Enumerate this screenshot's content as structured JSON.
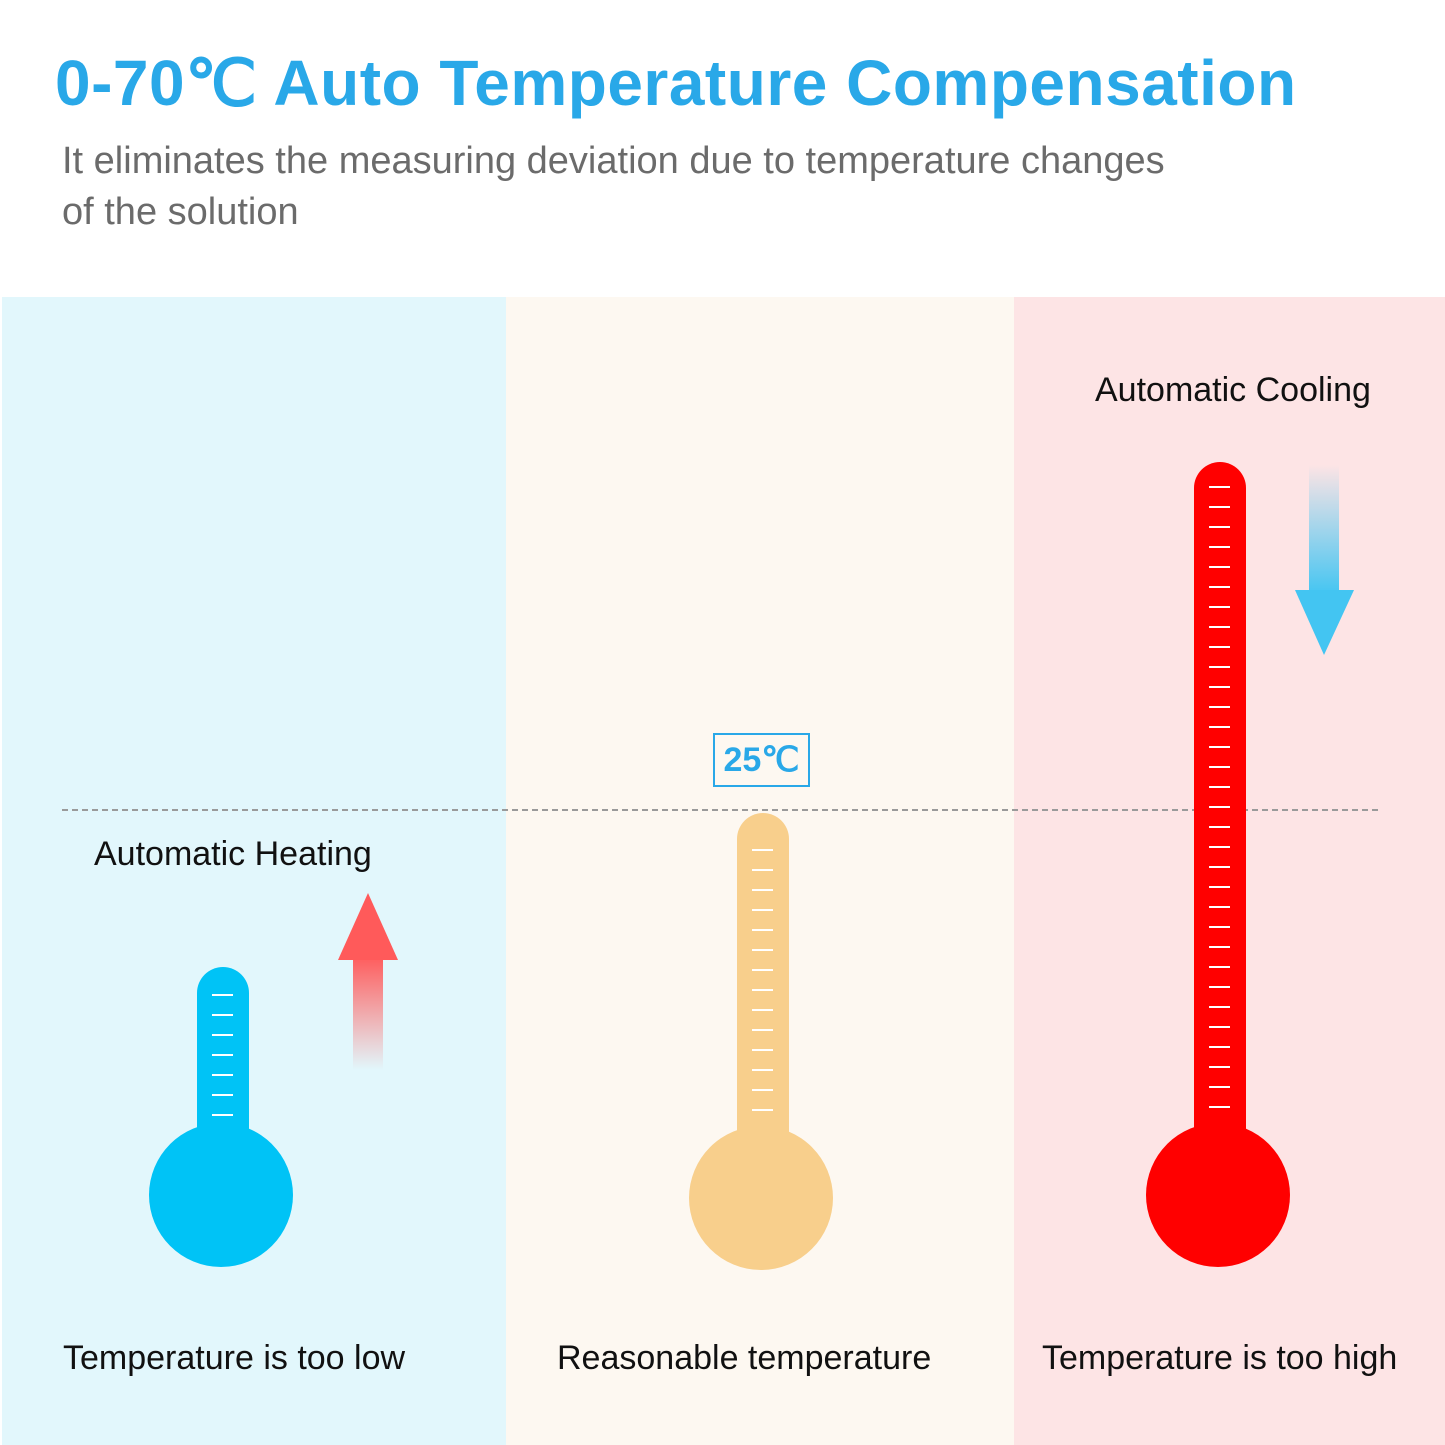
{
  "header": {
    "title": "0-70℃ Auto Temperature Compensation",
    "subtitle": "It eliminates the measuring deviation due to temperature changes of the solution"
  },
  "panels": [
    {
      "id": "low",
      "background": "#e2f7fc",
      "action_label": "Automatic Heating",
      "caption": "Temperature is too low",
      "thermometer_color": "#00c3f6",
      "arrow": "up-arrow-icon"
    },
    {
      "id": "mid",
      "background": "#fdf8f1",
      "action_label": "",
      "caption": "Reasonable temperature",
      "thermometer_color": "#f8cf8c",
      "reference_temperature": "25℃"
    },
    {
      "id": "high",
      "background": "#fde4e5",
      "action_label": "Automatic Cooling",
      "caption": "Temperature is too high",
      "thermometer_color": "#ff0000",
      "arrow": "down-arrow-icon"
    }
  ],
  "colors": {
    "accent": "#29a8e8",
    "heating_arrow": "#ff5a5a",
    "cooling_arrow": "#43c5f2",
    "reference_line": "#9a9a9a"
  }
}
